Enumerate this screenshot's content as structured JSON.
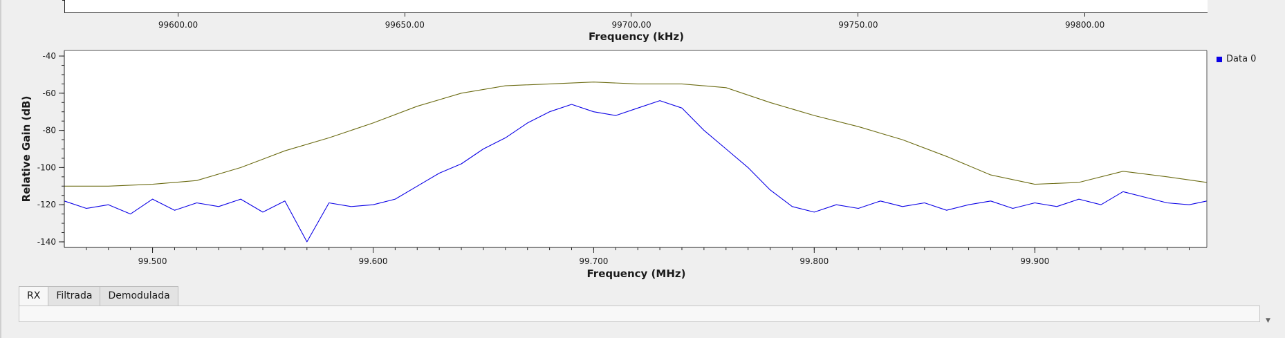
{
  "top_chart": {
    "x_ticks": [
      "99600.00",
      "99650.00",
      "99700.00",
      "99750.00",
      "99800.00"
    ],
    "x_tick_values": [
      99600,
      99650,
      99700,
      99750,
      99800
    ],
    "xlim": [
      99575,
      99827
    ],
    "xlabel": "Frequency (kHz)"
  },
  "chart_data": {
    "type": "line",
    "xlabel": "Frequency (MHz)",
    "ylabel": "Relative Gain (dB)",
    "xlim": [
      99.46,
      99.978
    ],
    "ylim": [
      -143,
      -37
    ],
    "x_ticks": [
      "99.500",
      "99.600",
      "99.700",
      "99.800",
      "99.900"
    ],
    "x_tick_values": [
      99.5,
      99.6,
      99.7,
      99.8,
      99.9
    ],
    "y_ticks": [
      "-40",
      "-60",
      "-80",
      "-100",
      "-120",
      "-140"
    ],
    "y_tick_values": [
      -40,
      -60,
      -80,
      -100,
      -120,
      -140
    ],
    "legend_position": "right",
    "series": [
      {
        "name": "Data 0",
        "color": "#0a00e6",
        "x": [
          99.46,
          99.47,
          99.48,
          99.49,
          99.5,
          99.51,
          99.52,
          99.53,
          99.54,
          99.55,
          99.56,
          99.57,
          99.58,
          99.59,
          99.6,
          99.61,
          99.62,
          99.63,
          99.64,
          99.65,
          99.66,
          99.67,
          99.68,
          99.69,
          99.7,
          99.71,
          99.72,
          99.73,
          99.74,
          99.75,
          99.76,
          99.77,
          99.78,
          99.79,
          99.8,
          99.81,
          99.82,
          99.83,
          99.84,
          99.85,
          99.86,
          99.87,
          99.88,
          99.89,
          99.9,
          99.91,
          99.92,
          99.93,
          99.94,
          99.95,
          99.96,
          99.97,
          99.978
        ],
        "y": [
          -118,
          -122,
          -120,
          -125,
          -117,
          -123,
          -119,
          -121,
          -117,
          -124,
          -118,
          -140,
          -119,
          -121,
          -120,
          -117,
          -110,
          -103,
          -98,
          -90,
          -84,
          -76,
          -70,
          -66,
          -70,
          -72,
          -68,
          -64,
          -68,
          -80,
          -90,
          -100,
          -112,
          -121,
          -124,
          -120,
          -122,
          -118,
          -121,
          -119,
          -123,
          -120,
          -118,
          -122,
          -119,
          -121,
          -117,
          -120,
          -113,
          -116,
          -119,
          -120,
          -118
        ]
      },
      {
        "color": "#6b6b12",
        "x": [
          99.46,
          99.48,
          99.5,
          99.52,
          99.54,
          99.56,
          99.58,
          99.6,
          99.62,
          99.64,
          99.66,
          99.68,
          99.7,
          99.72,
          99.74,
          99.76,
          99.78,
          99.8,
          99.82,
          99.84,
          99.86,
          99.88,
          99.9,
          99.92,
          99.94,
          99.96,
          99.978
        ],
        "y": [
          -110,
          -110,
          -109,
          -107,
          -100,
          -91,
          -84,
          -76,
          -67,
          -60,
          -56,
          -55,
          -54,
          -55,
          -55,
          -57,
          -65,
          -72,
          -78,
          -85,
          -94,
          -104,
          -109,
          -108,
          -102,
          -105,
          -108
        ]
      }
    ]
  },
  "tabs": [
    {
      "label": "RX",
      "active": true
    },
    {
      "label": "Filtrada",
      "active": false
    },
    {
      "label": "Demodulada",
      "active": false
    }
  ]
}
